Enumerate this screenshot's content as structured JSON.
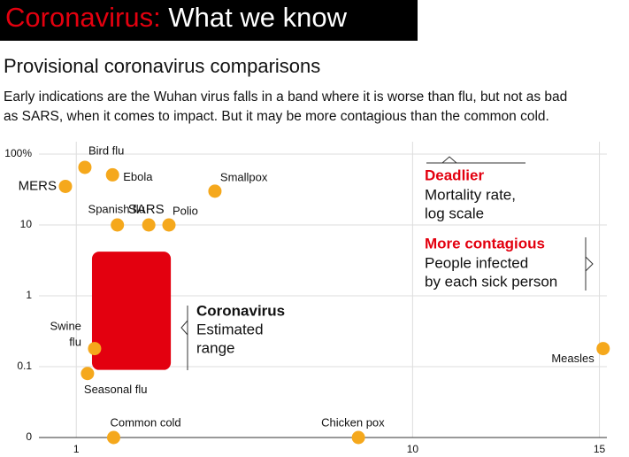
{
  "chart_data": {
    "type": "scatter",
    "kicker": "Coronavirus:",
    "header": "What we know",
    "title": "Provisional coronavirus comparisons",
    "subtitle": [
      "Early indications are the Wuhan virus falls in a band where it is worse than flu, but not as bad",
      "as SARS, when it comes to impact. But it may be more contagious than the common cold."
    ],
    "labels": [
      "Bird flu",
      "Ebola",
      "MERS",
      "Smallpox",
      "Spanish flu",
      "SARS",
      "Polio",
      "Swine flu",
      "Seasonal flu",
      "Common cold",
      "Chicken pox",
      "Measles"
    ],
    "x": [
      1.23,
      1.97,
      0.71,
      4.71,
      2.1,
      2.94,
      3.48,
      1.49,
      1.3,
      2.0,
      8.55,
      15.1
    ],
    "values": [
      65,
      51,
      35,
      30,
      10,
      10,
      10,
      0.18,
      0.08,
      0.01,
      0.01,
      0.18
    ],
    "color": "#f5a81c",
    "range": {
      "label": [
        "Coronavirus",
        "Estimated",
        "range"
      ],
      "x": [
        1.42,
        3.53
      ],
      "y": [
        0.09,
        4.2
      ],
      "color": "#e3000f"
    },
    "y_note": {
      "title": "Deadlier",
      "text": [
        "Mortality rate,",
        "log scale"
      ]
    },
    "x_note": {
      "title": "More contagious",
      "text": [
        "People infected",
        "by each sick person"
      ]
    },
    "accent": "#e3000f",
    "log_y": true,
    "grid": true,
    "xlim": [
      0,
      15.2
    ],
    "ylim": [
      0.01,
      100
    ],
    "xticks": [
      1,
      10,
      15
    ],
    "yticks": [
      {
        "value": 100,
        "label": "100%"
      },
      10,
      1,
      0.1,
      {
        "value": 0.01,
        "label": "0"
      }
    ]
  }
}
